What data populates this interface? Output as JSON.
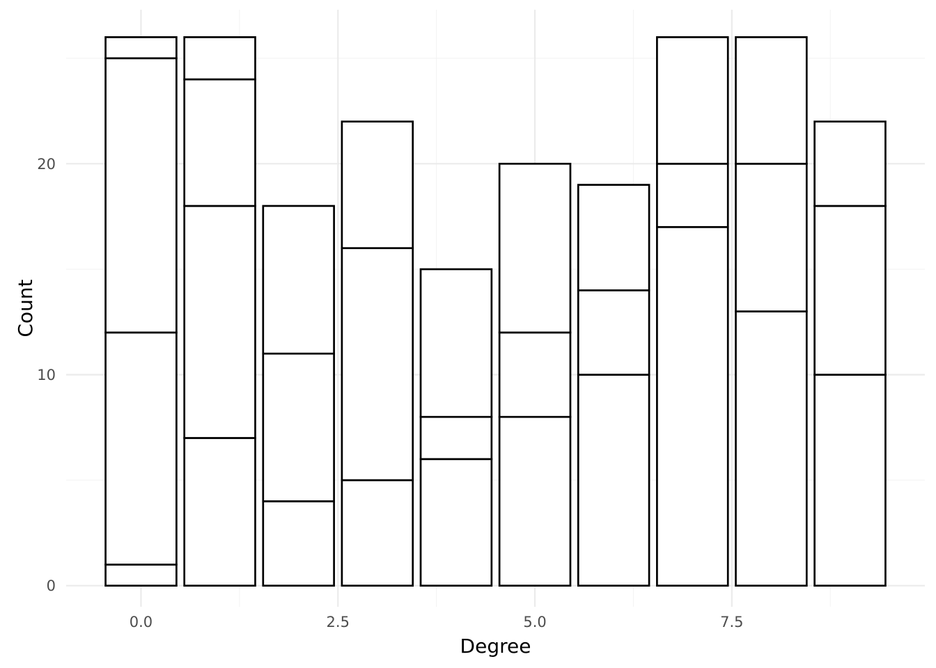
{
  "chart_data": {
    "type": "bar",
    "stacked": true,
    "title": "",
    "xlabel": "Degree",
    "ylabel": "Count",
    "xlim": [
      -0.95,
      9.95
    ],
    "ylim": [
      -1.0,
      27.3
    ],
    "grid": true,
    "legend": "none",
    "x_ticks": [
      0.0,
      2.5,
      5.0,
      7.5
    ],
    "x_tick_labels": [
      "0.0",
      "2.5",
      "5.0",
      "7.5"
    ],
    "y_ticks": [
      0,
      10,
      20
    ],
    "y_tick_labels": [
      "0",
      "10",
      "20"
    ],
    "x": [
      0,
      1,
      2,
      3,
      4,
      5,
      6,
      7,
      8,
      9
    ],
    "segment_boundaries": [
      [
        0,
        1,
        12,
        25,
        26
      ],
      [
        0,
        7,
        18,
        24,
        26
      ],
      [
        0,
        4,
        11,
        18
      ],
      [
        0,
        5,
        16,
        22
      ],
      [
        0,
        6,
        8,
        15
      ],
      [
        0,
        8,
        12,
        20
      ],
      [
        0,
        10,
        14,
        19
      ],
      [
        0,
        17,
        20,
        26
      ],
      [
        0,
        13,
        20,
        26
      ],
      [
        0,
        10,
        18,
        22
      ]
    ],
    "totals": [
      26,
      26,
      18,
      22,
      15,
      20,
      19,
      26,
      26,
      22
    ],
    "colors": {
      "bar_fill": "#ffffff",
      "bar_stroke": "#000000",
      "grid_major": "#ebebeb",
      "grid_minor": "#f3f3f3",
      "tick_text": "#4d4d4d",
      "axis_title": "#000000"
    }
  }
}
